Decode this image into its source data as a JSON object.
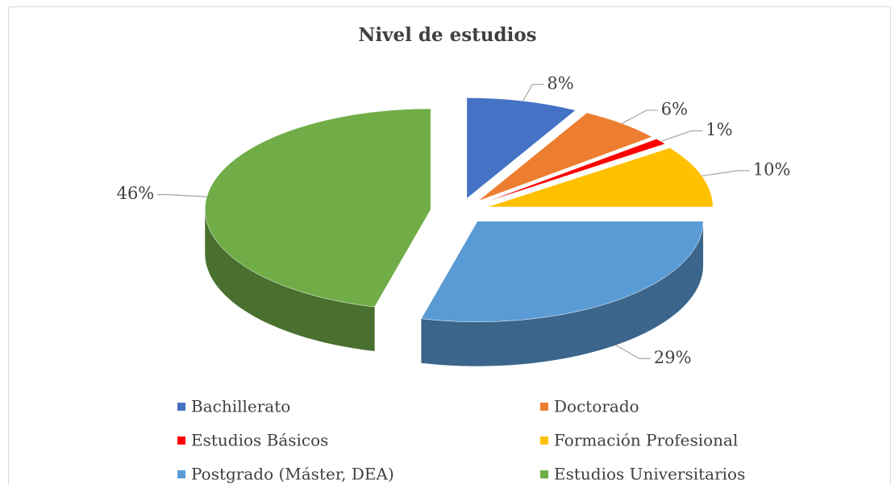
{
  "chart_data": {
    "type": "pie",
    "title": "Nivel de estudios",
    "categories": [
      "Bachillerato",
      "Doctorado",
      "Estudios Básicos",
      "Formación Profesional",
      "Postgrado (Máster, DEA)",
      "Estudios Universitarios"
    ],
    "values": [
      8,
      6,
      1,
      10,
      29,
      46
    ],
    "value_labels": [
      "8%",
      "6%",
      "1%",
      "10%",
      "29%",
      "46%"
    ],
    "colors": [
      "#4472c4",
      "#ed7d31",
      "#ff0000",
      "#ffc000",
      "#5b9bd5",
      "#70ad47"
    ]
  }
}
